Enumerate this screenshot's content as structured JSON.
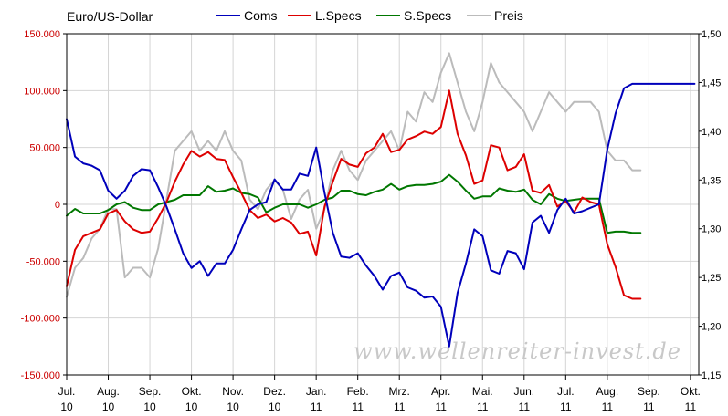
{
  "chart_data": {
    "type": "line",
    "title": "Euro/US-Dollar",
    "watermark": "www.wellenreiter-invest.de",
    "x_labels": [
      {
        "month": "Jul.",
        "year": "10"
      },
      {
        "month": "Aug.",
        "year": "10"
      },
      {
        "month": "Sep.",
        "year": "10"
      },
      {
        "month": "Okt.",
        "year": "10"
      },
      {
        "month": "Nov.",
        "year": "10"
      },
      {
        "month": "Dez.",
        "year": "10"
      },
      {
        "month": "Jan.",
        "year": "11"
      },
      {
        "month": "Feb.",
        "year": "11"
      },
      {
        "month": "Mrz.",
        "year": "11"
      },
      {
        "month": "Apr.",
        "year": "11"
      },
      {
        "month": "Mai.",
        "year": "11"
      },
      {
        "month": "Jun.",
        "year": "11"
      },
      {
        "month": "Jul.",
        "year": "11"
      },
      {
        "month": "Aug.",
        "year": "11"
      },
      {
        "month": "Sep.",
        "year": "11"
      },
      {
        "month": "Okt.",
        "year": "11"
      }
    ],
    "y_left": {
      "range": [
        -150000,
        150000
      ],
      "ticks": [
        "150.000",
        "100.000",
        "50.000",
        "0",
        "-50.000",
        "-100.000",
        "-150.000"
      ],
      "tick_values": [
        150000,
        100000,
        50000,
        0,
        -50000,
        -100000,
        -150000
      ],
      "color": "#cc0000"
    },
    "y_right": {
      "range": [
        1.15,
        1.5
      ],
      "ticks": [
        "1,50",
        "1,45",
        "1,40",
        "1,35",
        "1,30",
        "1,25",
        "1,20",
        "1,15"
      ],
      "tick_values": [
        1.5,
        1.45,
        1.4,
        1.35,
        1.3,
        1.25,
        1.2,
        1.15
      ]
    },
    "grid": true,
    "legend_position": "top",
    "x_domain": [
      0,
      15.2
    ],
    "series": [
      {
        "name": "Coms",
        "axis": "left",
        "color": "#0000bb",
        "x": [
          0.0,
          0.2,
          0.4,
          0.6,
          0.8,
          1.0,
          1.2,
          1.4,
          1.6,
          1.8,
          2.0,
          2.2,
          2.4,
          2.6,
          2.8,
          3.0,
          3.2,
          3.4,
          3.6,
          3.8,
          4.0,
          4.2,
          4.4,
          4.6,
          4.8,
          5.0,
          5.2,
          5.4,
          5.6,
          5.8,
          6.0,
          6.2,
          6.4,
          6.6,
          6.8,
          7.0,
          7.2,
          7.4,
          7.6,
          7.8,
          8.0,
          8.2,
          8.4,
          8.6,
          8.8,
          9.0,
          9.2,
          9.4,
          9.6,
          9.8,
          10.0,
          10.2,
          10.4,
          10.6,
          10.8,
          11.0,
          11.2,
          11.4,
          11.6,
          11.8,
          12.0,
          12.2,
          12.4,
          12.6,
          12.8,
          13.0,
          13.2,
          13.4,
          13.6,
          13.8,
          14.0,
          14.2,
          14.4,
          14.6,
          14.8,
          15.0,
          15.1
        ],
        "values": [
          75000,
          42000,
          36000,
          34000,
          30000,
          12000,
          5000,
          12000,
          25000,
          31000,
          30000,
          15000,
          -2000,
          -22000,
          -43000,
          -56000,
          -50000,
          -63000,
          -52000,
          -52000,
          -40000,
          -22000,
          -5000,
          0,
          2000,
          22000,
          13000,
          13000,
          27000,
          25000,
          50000,
          10000,
          -25000,
          -46000,
          -47000,
          -43000,
          -54000,
          -63000,
          -75000,
          -63000,
          -60000,
          -73000,
          -76000,
          -82000,
          -81000,
          -90000,
          -125000,
          -78000,
          -52000,
          -22000,
          -28000,
          -58000,
          -61000,
          -41000,
          -43000,
          -57000,
          -16000,
          -10000,
          -25000,
          -5000,
          5000,
          -8000,
          -6000,
          -3000,
          0,
          48000,
          80000,
          102000,
          106000,
          106000,
          106000,
          106000,
          106000,
          106000,
          106000,
          106000,
          106000
        ]
      },
      {
        "name": "L.Specs",
        "axis": "left",
        "color": "#dd0000",
        "x": [
          0.0,
          0.2,
          0.4,
          0.6,
          0.8,
          1.0,
          1.2,
          1.4,
          1.6,
          1.8,
          2.0,
          2.2,
          2.4,
          2.6,
          2.8,
          3.0,
          3.2,
          3.4,
          3.6,
          3.8,
          4.0,
          4.2,
          4.4,
          4.6,
          4.8,
          5.0,
          5.2,
          5.4,
          5.6,
          5.8,
          6.0,
          6.2,
          6.4,
          6.6,
          6.8,
          7.0,
          7.2,
          7.4,
          7.6,
          7.8,
          8.0,
          8.2,
          8.4,
          8.6,
          8.8,
          9.0,
          9.2,
          9.4,
          9.6,
          9.8,
          10.0,
          10.2,
          10.4,
          10.6,
          10.8,
          11.0,
          11.2,
          11.4,
          11.6,
          11.8,
          12.0,
          12.2,
          12.4,
          12.6,
          12.8,
          13.0,
          13.2,
          13.4,
          13.6,
          13.8
        ],
        "values": [
          -72000,
          -40000,
          -28000,
          -25000,
          -22000,
          -8000,
          -5000,
          -15000,
          -22000,
          -25000,
          -24000,
          -12000,
          2000,
          20000,
          35000,
          47000,
          42000,
          46000,
          40000,
          39000,
          24000,
          10000,
          -5000,
          -12000,
          -9000,
          -15000,
          -12000,
          -16000,
          -26000,
          -24000,
          -45000,
          -2000,
          20000,
          40000,
          35000,
          33000,
          45000,
          50000,
          62000,
          46000,
          48000,
          57000,
          60000,
          64000,
          62000,
          68000,
          100000,
          62000,
          43000,
          18000,
          21000,
          52000,
          50000,
          30000,
          33000,
          44000,
          12000,
          10000,
          17000,
          -2000,
          3000,
          -7000,
          6000,
          2000,
          0,
          -35000,
          -55000,
          -80000,
          -83000,
          -83000
        ]
      },
      {
        "name": "S.Specs",
        "axis": "left",
        "color": "#007700",
        "x": [
          0.0,
          0.2,
          0.4,
          0.6,
          0.8,
          1.0,
          1.2,
          1.4,
          1.6,
          1.8,
          2.0,
          2.2,
          2.4,
          2.6,
          2.8,
          3.0,
          3.2,
          3.4,
          3.6,
          3.8,
          4.0,
          4.2,
          4.4,
          4.6,
          4.8,
          5.0,
          5.2,
          5.4,
          5.6,
          5.8,
          6.0,
          6.2,
          6.4,
          6.6,
          6.8,
          7.0,
          7.2,
          7.4,
          7.6,
          7.8,
          8.0,
          8.2,
          8.4,
          8.6,
          8.8,
          9.0,
          9.2,
          9.4,
          9.6,
          9.8,
          10.0,
          10.2,
          10.4,
          10.6,
          10.8,
          11.0,
          11.2,
          11.4,
          11.6,
          11.8,
          12.0,
          12.2,
          12.4,
          12.6,
          12.8,
          13.0,
          13.2,
          13.4,
          13.6,
          13.8
        ],
        "values": [
          -10000,
          -4000,
          -8000,
          -8000,
          -8000,
          -5000,
          0,
          2000,
          -3000,
          -5000,
          -5000,
          0,
          2000,
          4000,
          8000,
          8000,
          8000,
          16000,
          11000,
          12000,
          14000,
          10000,
          9000,
          6000,
          -7000,
          -3000,
          0,
          0,
          0,
          -3000,
          0,
          4000,
          6000,
          12000,
          12000,
          9000,
          8000,
          11000,
          13000,
          18000,
          13000,
          16000,
          17000,
          17000,
          18000,
          20000,
          26000,
          20000,
          12000,
          5000,
          7000,
          7000,
          14000,
          12000,
          11000,
          13000,
          4000,
          0,
          9000,
          5000,
          3000,
          4000,
          5000,
          5000,
          5000,
          -25000,
          -24000,
          -24000,
          -25000,
          -25000
        ]
      },
      {
        "name": "Preis",
        "axis": "right",
        "color": "#bbbbbb",
        "x": [
          0.0,
          0.2,
          0.4,
          0.6,
          0.8,
          1.0,
          1.2,
          1.4,
          1.6,
          1.8,
          2.0,
          2.2,
          2.4,
          2.6,
          2.8,
          3.0,
          3.2,
          3.4,
          3.6,
          3.8,
          4.0,
          4.2,
          4.4,
          4.6,
          4.8,
          5.0,
          5.2,
          5.4,
          5.6,
          5.8,
          6.0,
          6.2,
          6.4,
          6.6,
          6.8,
          7.0,
          7.2,
          7.4,
          7.6,
          7.8,
          8.0,
          8.2,
          8.4,
          8.6,
          8.8,
          9.0,
          9.2,
          9.4,
          9.6,
          9.8,
          10.0,
          10.2,
          10.4,
          10.6,
          10.8,
          11.0,
          11.2,
          11.4,
          11.6,
          11.8,
          12.0,
          12.2,
          12.4,
          12.6,
          12.8,
          13.0,
          13.2,
          13.4,
          13.6,
          13.8
        ],
        "values": [
          1.23,
          1.26,
          1.27,
          1.29,
          1.3,
          1.32,
          1.32,
          1.25,
          1.26,
          1.26,
          1.25,
          1.28,
          1.33,
          1.38,
          1.39,
          1.4,
          1.38,
          1.39,
          1.38,
          1.4,
          1.38,
          1.37,
          1.33,
          1.32,
          1.34,
          1.35,
          1.34,
          1.31,
          1.33,
          1.34,
          1.3,
          1.32,
          1.36,
          1.38,
          1.36,
          1.35,
          1.37,
          1.38,
          1.39,
          1.4,
          1.38,
          1.42,
          1.41,
          1.44,
          1.43,
          1.46,
          1.48,
          1.45,
          1.42,
          1.4,
          1.43,
          1.47,
          1.45,
          1.44,
          1.43,
          1.42,
          1.4,
          1.42,
          1.44,
          1.43,
          1.42,
          1.43,
          1.43,
          1.43,
          1.42,
          1.38,
          1.37,
          1.37,
          1.36,
          1.36
        ]
      }
    ]
  }
}
